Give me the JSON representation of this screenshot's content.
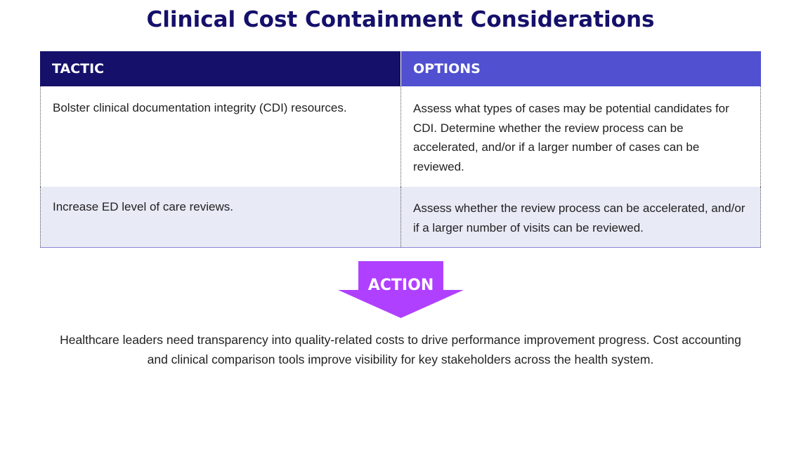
{
  "title": "Clinical Cost Containment Considerations",
  "table": {
    "headers": {
      "tactic": "TACTIC",
      "options": "OPTIONS"
    },
    "rows": [
      {
        "tactic": "Bolster clinical documentation integrity (CDI) resources.",
        "options": "Assess what types of cases may be potential candidates for CDI. Determine whether the review process can be accelerated, and/or if a larger number of cases can be reviewed."
      },
      {
        "tactic": "Increase ED level of care reviews.",
        "options": "Assess whether the review process can be accelerated, and/or if a larger number of visits can be reviewed."
      }
    ]
  },
  "action": {
    "label": "ACTION",
    "text": "Healthcare leaders need transparency into quality-related costs to drive performance improvement progress. Cost accounting and clinical comparison tools improve visibility for key stakeholders across the health system."
  },
  "colors": {
    "navy": "#15106a",
    "indigo": "#5050d0",
    "purple": "#b040ff",
    "row_alt": "#e8eaf6"
  }
}
